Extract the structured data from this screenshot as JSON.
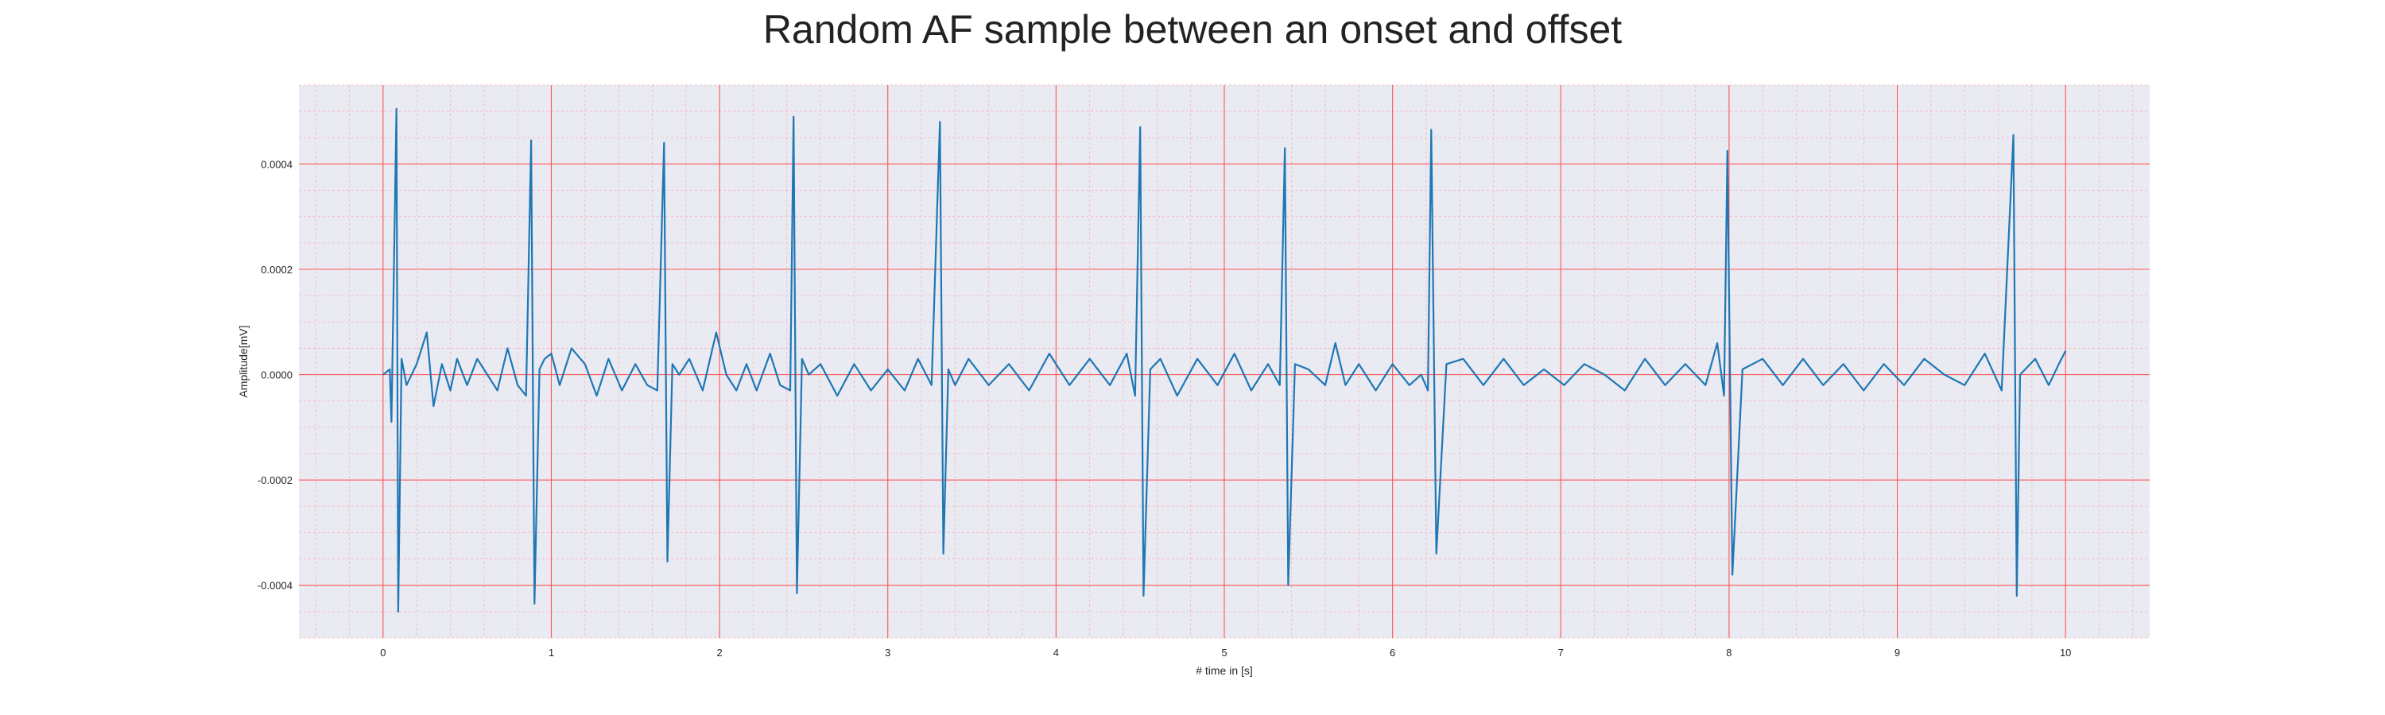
{
  "chart_data": {
    "type": "line",
    "title": "Random AF sample between an onset and offset",
    "xlabel": "# time in [s]",
    "ylabel": "Amplitude[mV]",
    "xlim": [
      -0.5,
      10.5
    ],
    "ylim": [
      -0.0005,
      0.00055
    ],
    "x_ticks": [
      0,
      1,
      2,
      3,
      4,
      5,
      6,
      7,
      8,
      9,
      10
    ],
    "x_tick_labels": [
      "0",
      "1",
      "2",
      "3",
      "4",
      "5",
      "6",
      "7",
      "8",
      "9",
      "10"
    ],
    "y_ticks": [
      0.0004,
      0.0002,
      0.0,
      -0.0002,
      -0.0004
    ],
    "y_tick_labels": [
      "0.0004",
      "0.0002",
      "0.0000",
      "-0.0002",
      "-0.0004"
    ],
    "grid": true,
    "minor_grid": true,
    "legend": "none",
    "colors": {
      "background": "#eaeaf2",
      "major_grid": "#ff5555",
      "minor_grid": "#f4b4b4",
      "line": "#1f77b4"
    },
    "series": [
      {
        "x": [
          0.0,
          0.04,
          0.05,
          0.08,
          0.09,
          0.11,
          0.14,
          0.2,
          0.26,
          0.3,
          0.35,
          0.4,
          0.44,
          0.5,
          0.56,
          0.62,
          0.68,
          0.74,
          0.8,
          0.85,
          0.88,
          0.9,
          0.93,
          0.96,
          1.0,
          1.05,
          1.12,
          1.2,
          1.27,
          1.34,
          1.42,
          1.5,
          1.57,
          1.63,
          1.67,
          1.69,
          1.72,
          1.76,
          1.82,
          1.9,
          1.98,
          2.04,
          2.1,
          2.16,
          2.22,
          2.3,
          2.36,
          2.42,
          2.44,
          2.46,
          2.49,
          2.53,
          2.6,
          2.7,
          2.8,
          2.9,
          3.0,
          3.1,
          3.18,
          3.26,
          3.31,
          3.33,
          3.36,
          3.4,
          3.48,
          3.6,
          3.72,
          3.84,
          3.96,
          4.08,
          4.2,
          4.32,
          4.42,
          4.47,
          4.5,
          4.52,
          4.56,
          4.62,
          4.72,
          4.84,
          4.96,
          5.06,
          5.16,
          5.26,
          5.33,
          5.36,
          5.38,
          5.42,
          5.5,
          5.6,
          5.66,
          5.72,
          5.8,
          5.9,
          6.0,
          6.1,
          6.17,
          6.21,
          6.23,
          6.26,
          6.32,
          6.42,
          6.54,
          6.66,
          6.78,
          6.9,
          7.02,
          7.14,
          7.26,
          7.38,
          7.5,
          7.62,
          7.74,
          7.86,
          7.93,
          7.97,
          7.99,
          8.02,
          8.08,
          8.2,
          8.32,
          8.44,
          8.56,
          8.68,
          8.8,
          8.92,
          9.04,
          9.16,
          9.28,
          9.4,
          9.52,
          9.62,
          9.69,
          9.71,
          9.73,
          9.76,
          9.82,
          9.9,
          9.96,
          10.0
        ],
        "y": [
          0.0,
          1e-05,
          -9e-05,
          0.000505,
          -0.00045,
          3e-05,
          -2e-05,
          2e-05,
          8e-05,
          -6e-05,
          2e-05,
          -3e-05,
          3e-05,
          -2e-05,
          3e-05,
          0.0,
          -3e-05,
          5e-05,
          -2e-05,
          -4e-05,
          0.000445,
          -0.000435,
          1e-05,
          3e-05,
          4e-05,
          -2e-05,
          5e-05,
          2e-05,
          -4e-05,
          3e-05,
          -3e-05,
          2e-05,
          -2e-05,
          -3e-05,
          0.00044,
          -0.000355,
          2e-05,
          0.0,
          3e-05,
          -3e-05,
          8e-05,
          0.0,
          -3e-05,
          2e-05,
          -3e-05,
          4e-05,
          -2e-05,
          -3e-05,
          0.00049,
          -0.000415,
          3e-05,
          0.0,
          2e-05,
          -4e-05,
          2e-05,
          -3e-05,
          1e-05,
          -3e-05,
          3e-05,
          -2e-05,
          0.00048,
          -0.00034,
          1e-05,
          -2e-05,
          3e-05,
          -2e-05,
          2e-05,
          -3e-05,
          4e-05,
          -2e-05,
          3e-05,
          -2e-05,
          4e-05,
          -4e-05,
          0.00047,
          -0.00042,
          1e-05,
          3e-05,
          -4e-05,
          3e-05,
          -2e-05,
          4e-05,
          -3e-05,
          2e-05,
          -2e-05,
          0.00043,
          -0.0004,
          2e-05,
          1e-05,
          -2e-05,
          6e-05,
          -2e-05,
          2e-05,
          -3e-05,
          2e-05,
          -2e-05,
          0.0,
          -3e-05,
          0.000465,
          -0.00034,
          2e-05,
          3e-05,
          -2e-05,
          3e-05,
          -2e-05,
          1e-05,
          -2e-05,
          2e-05,
          0.0,
          -3e-05,
          3e-05,
          -2e-05,
          2e-05,
          -2e-05,
          6e-05,
          -4e-05,
          0.000425,
          -0.00038,
          1e-05,
          3e-05,
          -2e-05,
          3e-05,
          -2e-05,
          2e-05,
          -3e-05,
          2e-05,
          -2e-05,
          3e-05,
          0.0,
          -2e-05,
          4e-05,
          -3e-05,
          0.000455,
          -0.00042,
          0.0,
          1e-05,
          3e-05,
          -2e-05,
          2e-05,
          4.5e-05
        ]
      }
    ]
  }
}
